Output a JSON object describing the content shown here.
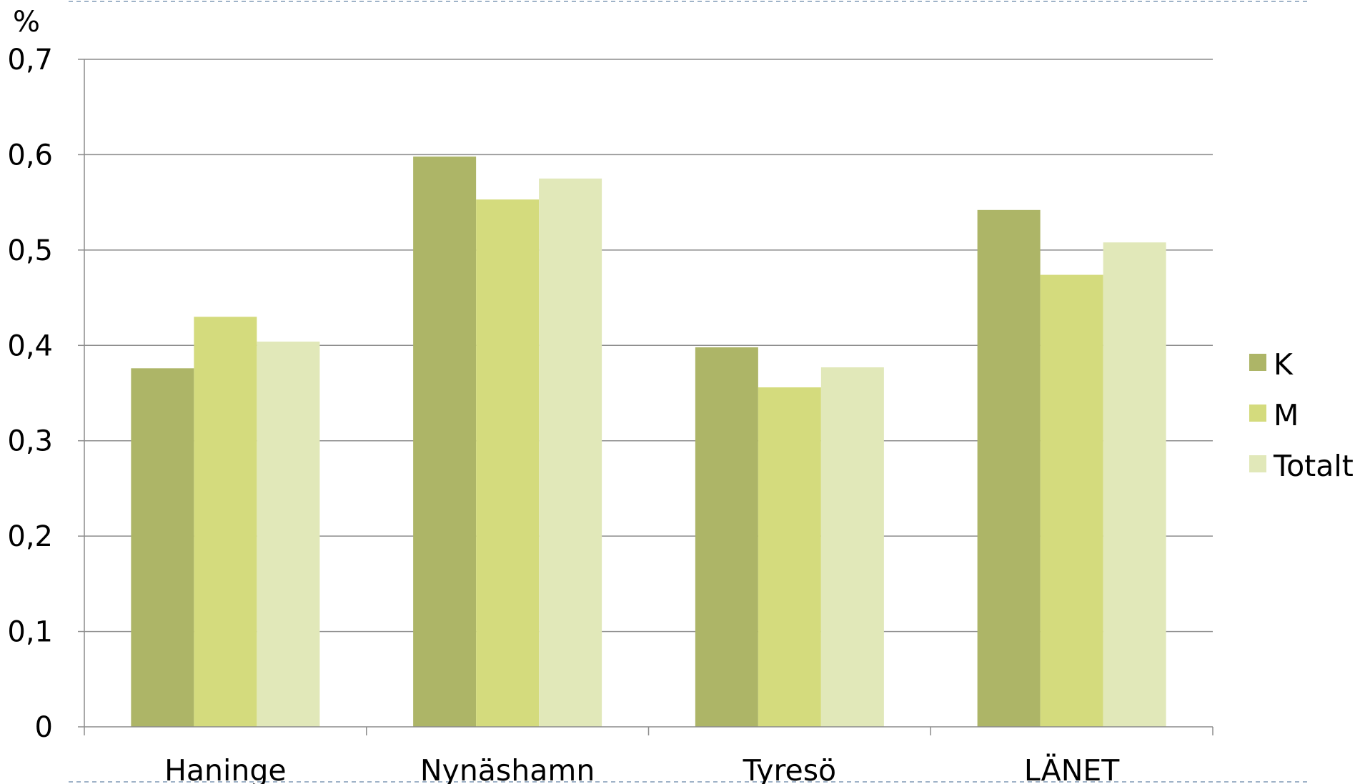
{
  "chart_data": {
    "type": "bar",
    "title": "",
    "xlabel": "",
    "ylabel": "%",
    "ylim": [
      0,
      0.7
    ],
    "yticks": [
      0,
      0.1,
      0.2,
      0.3,
      0.4,
      0.5,
      0.6,
      0.7
    ],
    "ytick_labels": [
      "0",
      "0,1",
      "0,2",
      "0,3",
      "0,4",
      "0,5",
      "0,6",
      "0,7"
    ],
    "grid": true,
    "legend_position": "right",
    "categories": [
      "Haninge",
      "Nynäshamn",
      "Tyresö",
      "LÄNET"
    ],
    "series": [
      {
        "name": "K",
        "color": "#adb567",
        "values": [
          0.376,
          0.598,
          0.398,
          0.542
        ]
      },
      {
        "name": "M",
        "color": "#d4db7d",
        "values": [
          0.43,
          0.553,
          0.356,
          0.474
        ]
      },
      {
        "name": "Totalt",
        "color": "#e1e8b9",
        "values": [
          0.404,
          0.575,
          0.377,
          0.508
        ]
      }
    ]
  },
  "colors": {
    "gridline": "#8c8c8c",
    "axis": "#8c8c8c",
    "frame_dash": "#9fb3c8"
  }
}
